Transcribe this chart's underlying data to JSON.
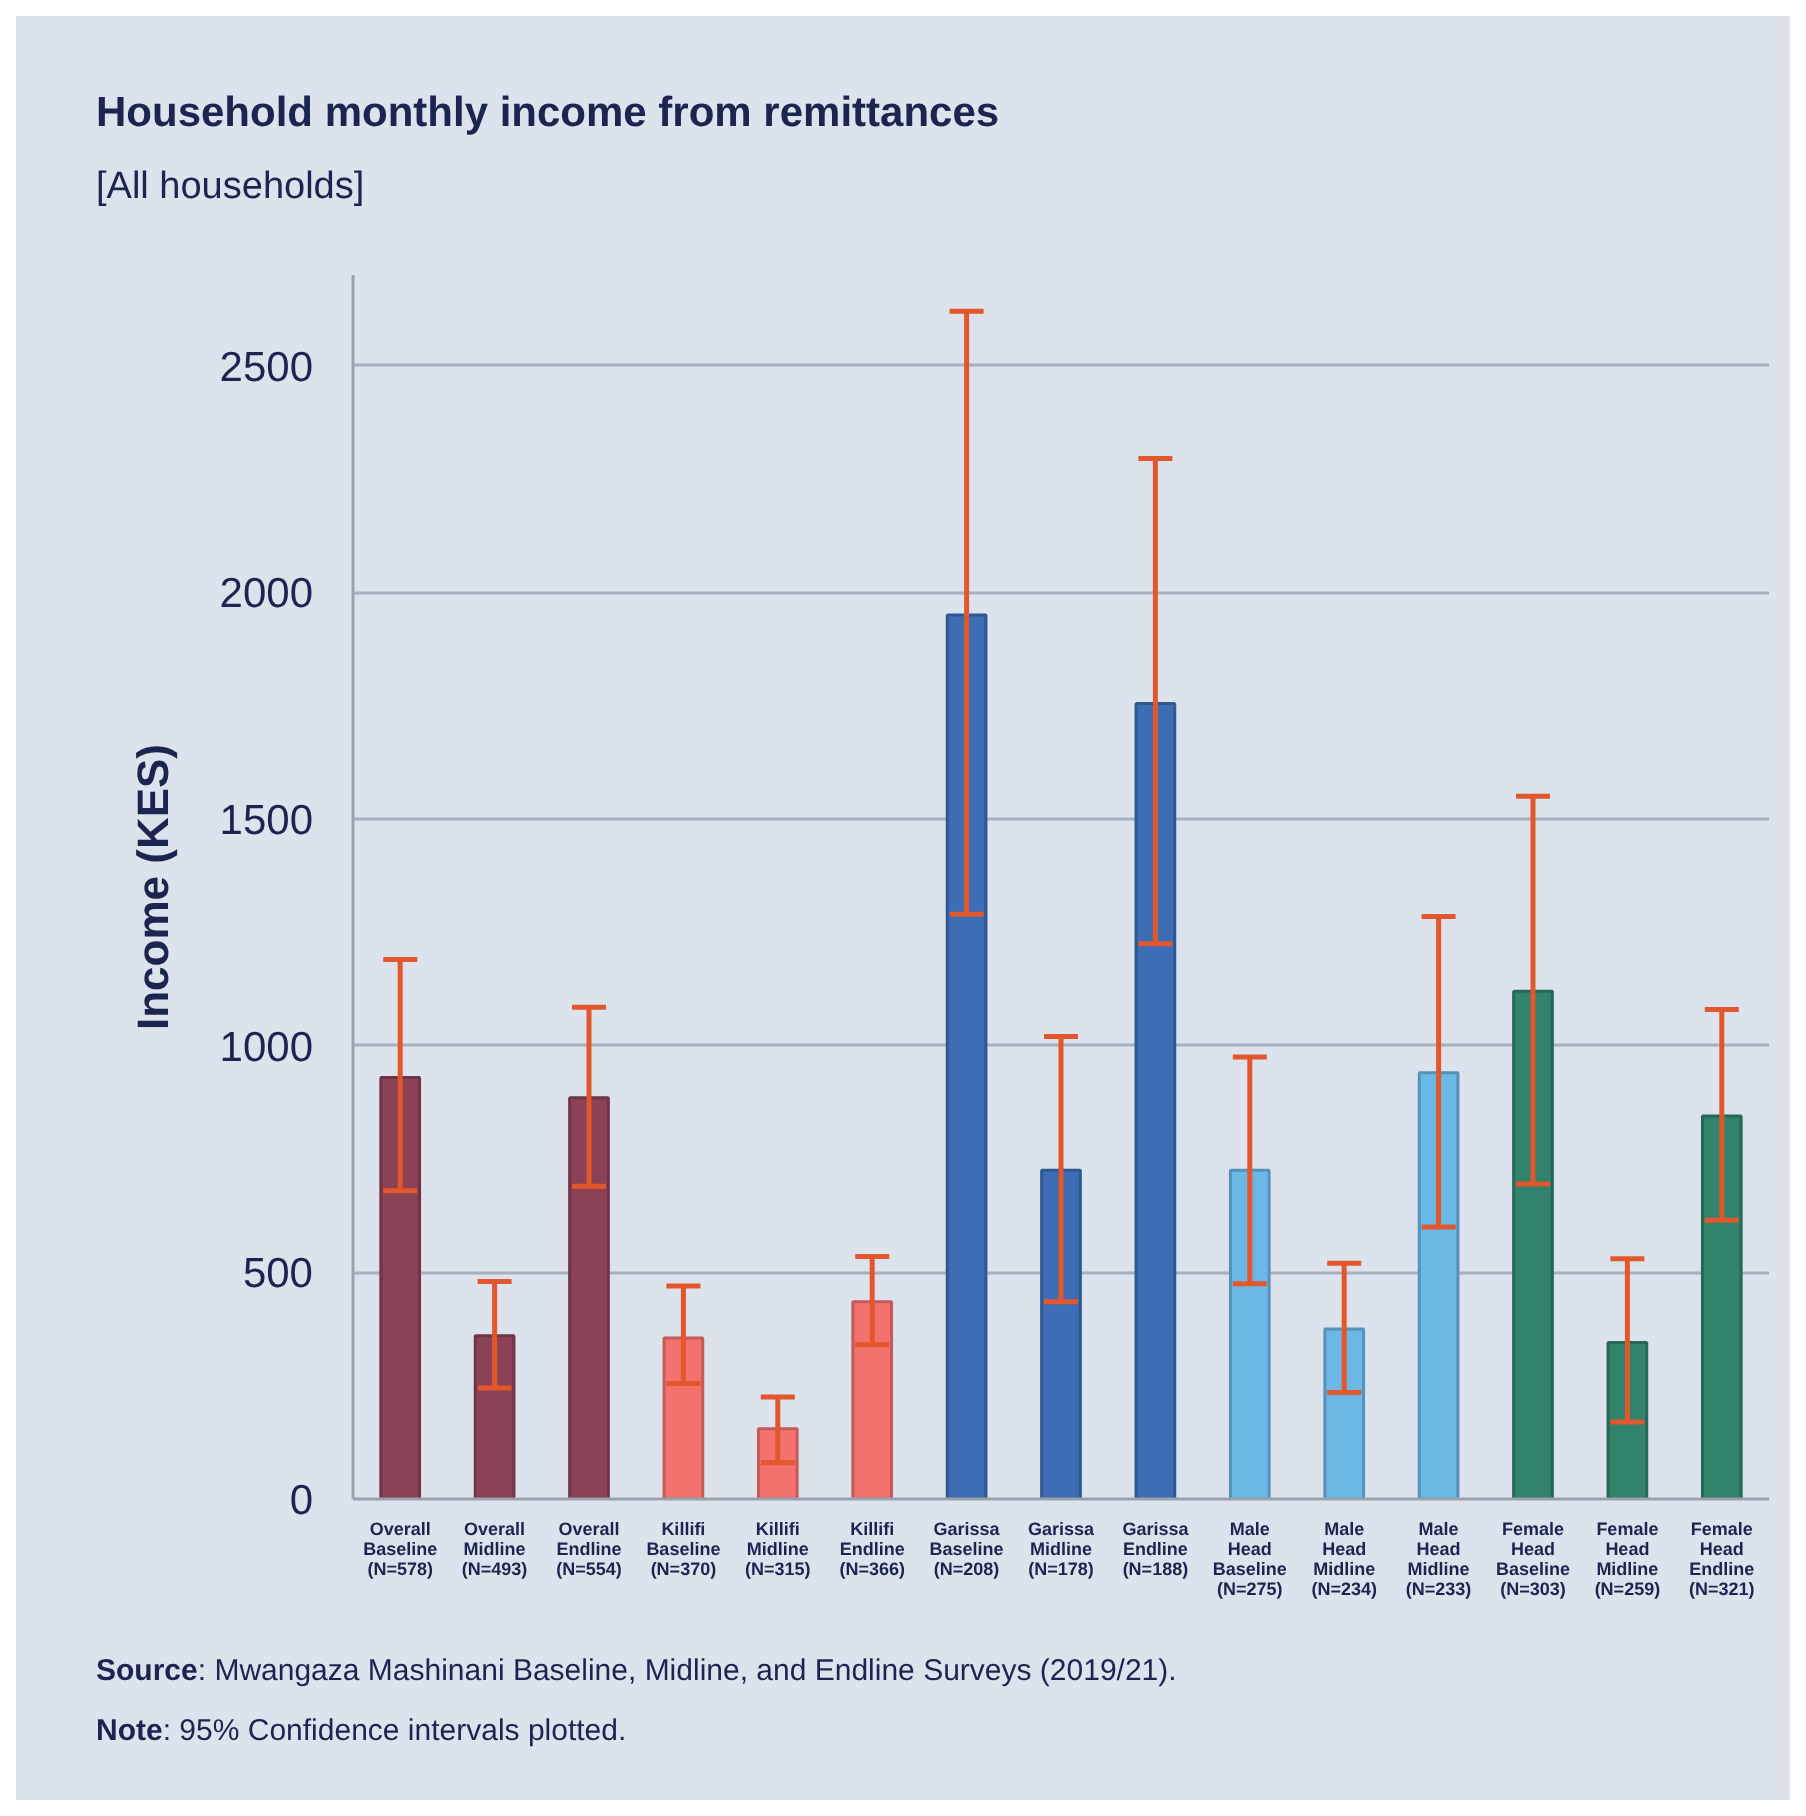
{
  "chart_data": {
    "type": "bar",
    "title": "Household monthly income from remittances",
    "subtitle": "[All households]",
    "ylabel": "Income (KES)",
    "categories": [
      "Overall\nBaseline\n(N=578)",
      "Overall\nMidline\n(N=493)",
      "Overall\nEndline\n(N=554)",
      "Killifi\nBaseline\n(N=370)",
      "Killifi\nMidline\n(N=315)",
      "Killifi\nEndline\n(N=366)",
      "Garissa\nBaseline\n(N=208)",
      "Garissa\nMidline\n(N=178)",
      "Garissa\nEndline\n(N=188)",
      "Male\nHead\nBaseline\n(N=275)",
      "Male\nHead\nMidline\n(N=234)",
      "Male\nHead\nMidline\n(N=233)",
      "Female\nHead\nBaseline\n(N=303)",
      "Female\nHead\nMidline\n(N=259)",
      "Female\nHead\nEndline\n(N=321)"
    ],
    "values": [
      930,
      360,
      885,
      355,
      155,
      435,
      1950,
      725,
      1755,
      725,
      375,
      940,
      1120,
      345,
      845
    ],
    "colors": [
      "#8b4257",
      "#8b4257",
      "#8b4257",
      "#f4726e",
      "#f4726e",
      "#f4726e",
      "#3d6db5",
      "#3d6db5",
      "#3d6db5",
      "#6bb7e6",
      "#6bb7e6",
      "#6bb7e6",
      "#31836b",
      "#31836b",
      "#31836b"
    ],
    "errors": [
      [
        680,
        1190
      ],
      [
        245,
        480
      ],
      [
        690,
        1085
      ],
      [
        255,
        470
      ],
      [
        80,
        225
      ],
      [
        340,
        535
      ],
      [
        1290,
        2620
      ],
      [
        435,
        1020
      ],
      [
        1225,
        2295
      ],
      [
        475,
        975
      ],
      [
        235,
        520
      ],
      [
        600,
        1285
      ],
      [
        695,
        1550
      ],
      [
        170,
        530
      ],
      [
        615,
        1080
      ]
    ],
    "ylim": [
      0,
      2700
    ],
    "yticks": [
      0,
      500,
      1000,
      1500,
      2000,
      2500
    ],
    "grid": "y",
    "annotations": [
      "Source: Mwangaza Mashinani Baseline, Midline, and Endline Surveys (2019/21).",
      "Note: 95% Confidence intervals plotted."
    ]
  }
}
